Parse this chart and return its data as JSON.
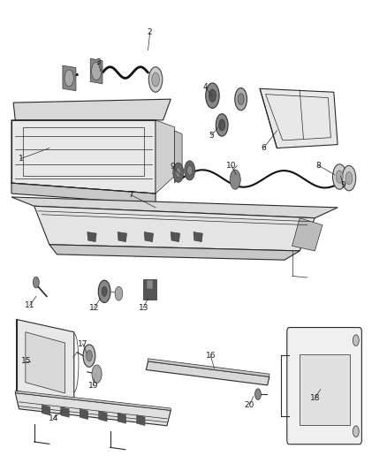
{
  "background_color": "#ffffff",
  "line_color": "#2a2a2a",
  "label_color": "#1a1a1a",
  "figsize": [
    4.38,
    5.33
  ],
  "dpi": 100,
  "ylim": [
    0.0,
    1.0
  ],
  "xlim": [
    0.0,
    1.0
  ]
}
